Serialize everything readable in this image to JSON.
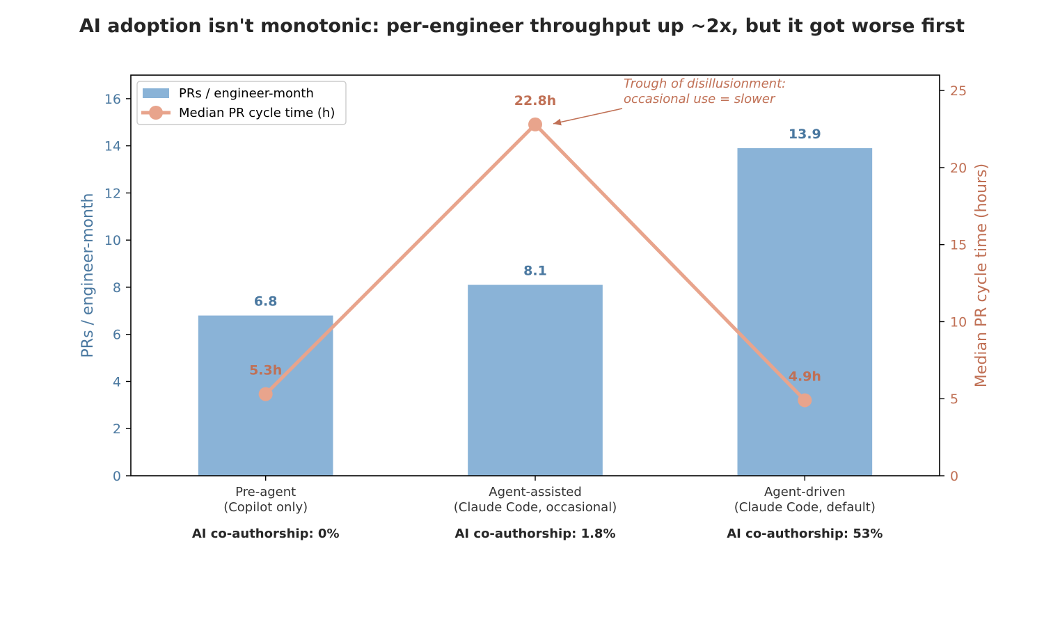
{
  "title": "AI adoption isn't monotonic: per-engineer throughput up ~2x, but it got worse first",
  "chart_data": {
    "type": "bar",
    "categories": [
      [
        "Pre-agent",
        "(Copilot only)"
      ],
      [
        "Agent-assisted",
        "(Claude Code, occasional)"
      ],
      [
        "Agent-driven",
        "(Claude Code, default)"
      ]
    ],
    "category_sublabels": [
      "AI co-authorship: 0%",
      "AI co-authorship: 1.8%",
      "AI co-authorship: 53%"
    ],
    "series": [
      {
        "name": "PRs / engineer-month",
        "type": "bar",
        "axis": "left",
        "color": "#8ab3d7",
        "label_color": "#4a78a0",
        "values": [
          6.8,
          8.1,
          13.9
        ],
        "labels": [
          "6.8",
          "8.1",
          "13.9"
        ]
      },
      {
        "name": "Median PR cycle time (h)",
        "type": "line",
        "axis": "right",
        "color": "#e8a48c",
        "label_color": "#c07055",
        "values": [
          5.3,
          22.8,
          4.9
        ],
        "labels": [
          "5.3h",
          "22.8h",
          "4.9h"
        ]
      }
    ],
    "ylabel": "PRs / engineer-month",
    "ylim": [
      0,
      17
    ],
    "yticks": [
      "0",
      "2",
      "4",
      "6",
      "8",
      "10",
      "12",
      "14",
      "16"
    ],
    "y2label": "Median PR cycle time (hours)",
    "y2lim": [
      0,
      26
    ],
    "y2ticks": [
      "0",
      "5",
      "10",
      "15",
      "20",
      "25"
    ],
    "legend_position": "top-left",
    "grid": false,
    "annotation": {
      "lines": [
        "Trough of disillusionment:",
        "occasional use = slower"
      ],
      "target_category": 1,
      "target_series": 1
    }
  }
}
